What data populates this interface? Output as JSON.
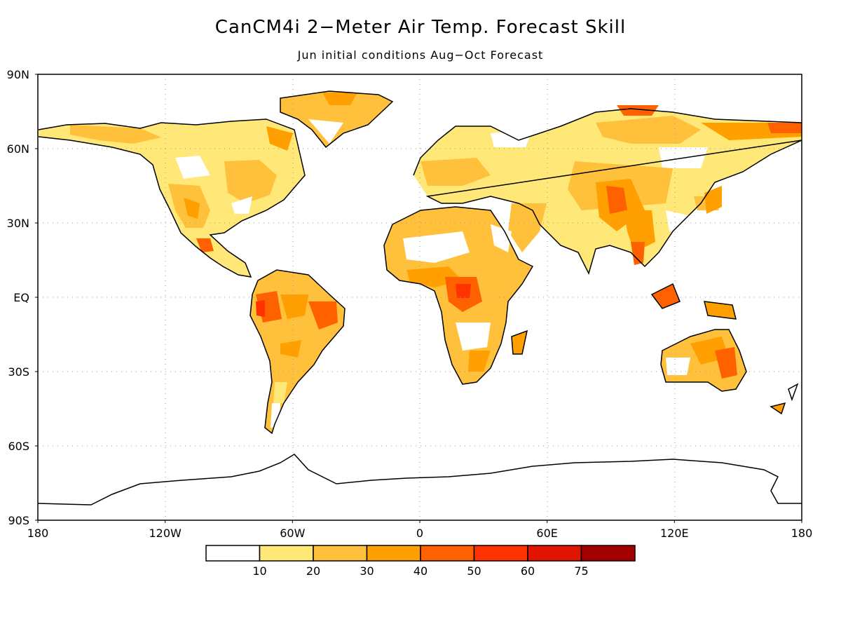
{
  "title": "CanCM4i 2−Meter Air Temp. Forecast Skill",
  "subtitle": "Jun initial conditions  Aug−Oct Forecast",
  "axes": {
    "lat_ticks": [
      {
        "value": 90,
        "label": "90N"
      },
      {
        "value": 60,
        "label": "60N"
      },
      {
        "value": 30,
        "label": "30N"
      },
      {
        "value": 0,
        "label": "EQ"
      },
      {
        "value": -30,
        "label": "30S"
      },
      {
        "value": -60,
        "label": "60S"
      },
      {
        "value": -90,
        "label": "90S"
      }
    ],
    "lon_ticks": [
      {
        "value": -180,
        "label": "180"
      },
      {
        "value": -120,
        "label": "120W"
      },
      {
        "value": -60,
        "label": "60W"
      },
      {
        "value": 0,
        "label": "0"
      },
      {
        "value": 60,
        "label": "60E"
      },
      {
        "value": 120,
        "label": "120E"
      },
      {
        "value": 180,
        "label": "180"
      }
    ],
    "lon_range": [
      -180,
      180
    ],
    "lat_range": [
      -90,
      90
    ],
    "grid": true
  },
  "colorbar": {
    "bins": [
      {
        "color": "#ffffff",
        "label": "10"
      },
      {
        "color": "#ffe878",
        "label": "20"
      },
      {
        "color": "#ffc03c",
        "label": "30"
      },
      {
        "color": "#ffa000",
        "label": "40"
      },
      {
        "color": "#ff6000",
        "label": "50"
      },
      {
        "color": "#ff3200",
        "label": "60"
      },
      {
        "color": "#e11400",
        "label": "75"
      },
      {
        "color": "#a50000",
        "label": ""
      }
    ]
  }
}
